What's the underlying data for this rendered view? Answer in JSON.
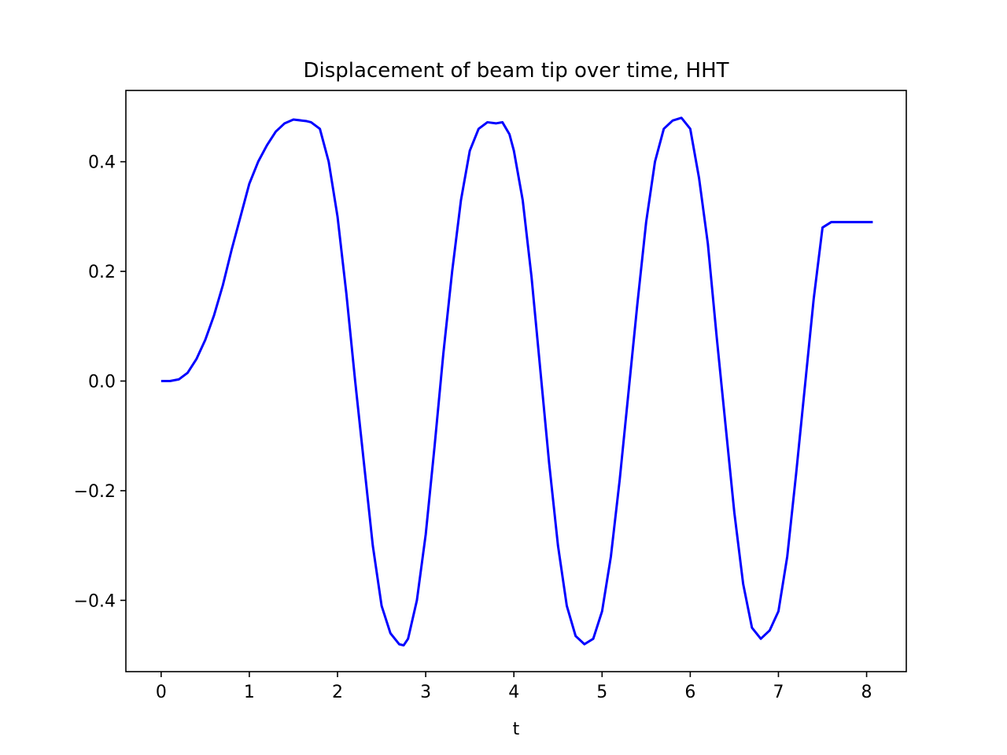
{
  "chart_data": {
    "type": "line",
    "title": "Displacement of beam tip over time, HHT",
    "xlabel": "t",
    "ylabel": "",
    "xlim": [
      -0.4,
      8.45
    ],
    "ylim": [
      -0.53,
      0.53
    ],
    "xticks": [
      0,
      1,
      2,
      3,
      4,
      5,
      6,
      7,
      8
    ],
    "xtick_labels": [
      "0",
      "1",
      "2",
      "3",
      "4",
      "5",
      "6",
      "7",
      "8"
    ],
    "yticks": [
      -0.4,
      -0.2,
      0.0,
      0.2,
      0.4
    ],
    "ytick_labels": [
      "−0.4",
      "−0.2",
      "0.0",
      "0.2",
      "0.4"
    ],
    "grid": false,
    "series": [
      {
        "color": "#0000ff",
        "x": [
          0.0,
          0.1,
          0.2,
          0.3,
          0.4,
          0.5,
          0.6,
          0.7,
          0.8,
          0.9,
          1.0,
          1.1,
          1.2,
          1.3,
          1.4,
          1.5,
          1.6,
          1.65,
          1.7,
          1.8,
          1.9,
          2.0,
          2.1,
          2.2,
          2.3,
          2.4,
          2.5,
          2.6,
          2.7,
          2.75,
          2.8,
          2.9,
          3.0,
          3.1,
          3.2,
          3.3,
          3.4,
          3.5,
          3.6,
          3.7,
          3.8,
          3.87,
          3.95,
          4.0,
          4.1,
          4.2,
          4.3,
          4.4,
          4.5,
          4.6,
          4.7,
          4.8,
          4.9,
          5.0,
          5.1,
          5.2,
          5.3,
          5.4,
          5.5,
          5.6,
          5.7,
          5.8,
          5.9,
          6.0,
          6.1,
          6.2,
          6.3,
          6.4,
          6.5,
          6.6,
          6.7,
          6.8,
          6.9,
          7.0,
          7.1,
          7.2,
          7.3,
          7.4,
          7.5,
          7.6,
          7.7,
          7.8,
          7.9,
          8.0,
          8.07
        ],
        "y": [
          0.0,
          0.0,
          0.003,
          0.015,
          0.04,
          0.075,
          0.12,
          0.175,
          0.24,
          0.3,
          0.36,
          0.4,
          0.43,
          0.455,
          0.47,
          0.477,
          0.475,
          0.474,
          0.472,
          0.46,
          0.4,
          0.3,
          0.16,
          0.0,
          -0.15,
          -0.3,
          -0.41,
          -0.46,
          -0.48,
          -0.482,
          -0.47,
          -0.4,
          -0.28,
          -0.12,
          0.05,
          0.2,
          0.33,
          0.42,
          0.46,
          0.472,
          0.47,
          0.472,
          0.45,
          0.42,
          0.33,
          0.19,
          0.02,
          -0.15,
          -0.3,
          -0.41,
          -0.465,
          -0.48,
          -0.47,
          -0.42,
          -0.32,
          -0.18,
          -0.02,
          0.14,
          0.29,
          0.4,
          0.46,
          0.475,
          0.48,
          0.46,
          0.37,
          0.25,
          0.08,
          -0.08,
          -0.24,
          -0.37,
          -0.45,
          -0.47,
          -0.455,
          -0.42,
          -0.32,
          -0.17,
          -0.01,
          0.15,
          0.28,
          0.29,
          0.29,
          0.29,
          0.29,
          0.29,
          0.29
        ]
      }
    ]
  }
}
